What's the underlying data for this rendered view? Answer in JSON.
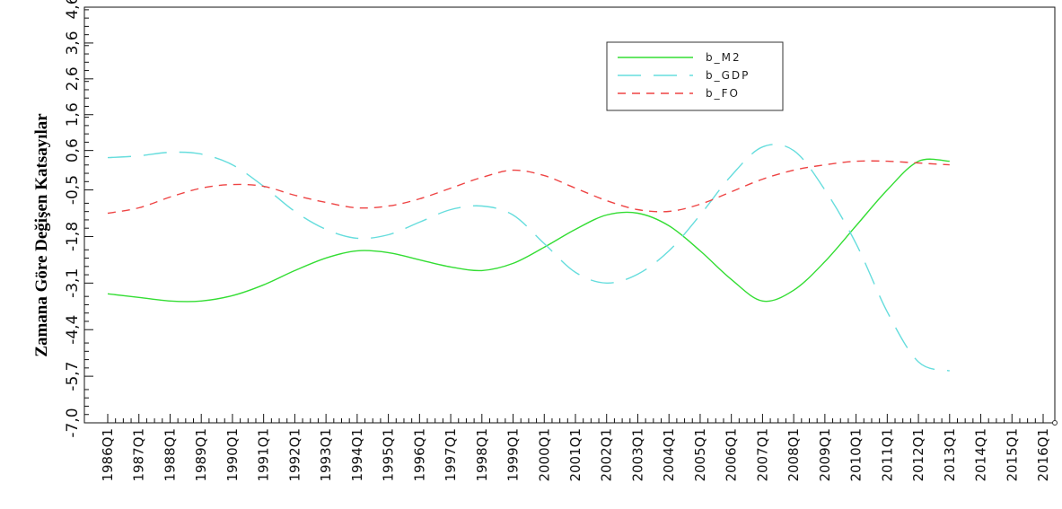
{
  "chart_data": {
    "type": "line",
    "title": "",
    "xlabel": "",
    "ylabel": "Zamana Göre Değişen Katsayılar",
    "ylim": [
      -7.0,
      4.6
    ],
    "yticks": [
      "-7,0",
      "-5,7",
      "-4,4",
      "-3,1",
      "-1,8",
      "-0,5",
      "0,6",
      "1,6",
      "2,6",
      "3,6",
      "4,6"
    ],
    "ytick_values": [
      -7.0,
      -5.7,
      -4.4,
      -3.1,
      -1.8,
      -0.5,
      0.6,
      1.6,
      2.6,
      3.6,
      4.6
    ],
    "categories": [
      "1986Q1",
      "1987Q1",
      "1988Q1",
      "1989Q1",
      "1990Q1",
      "1991Q1",
      "1992Q1",
      "1993Q1",
      "1994Q1",
      "1995Q1",
      "1996Q1",
      "1997Q1",
      "1998Q1",
      "1999Q1",
      "2000Q1",
      "2001Q1",
      "2002Q1",
      "2003Q1",
      "2004Q1",
      "2005Q1",
      "2006Q1",
      "2007Q1",
      "2008Q1",
      "2009Q1",
      "2010Q1",
      "2011Q1",
      "2012Q1",
      "2013Q1",
      "2014Q1",
      "2015Q1",
      "2016Q1"
    ],
    "grid": false,
    "legend_position": "top-right",
    "series": [
      {
        "name": "b_M2",
        "color": "#33dd33",
        "dash": "solid",
        "x": [
          1986.0,
          1987.0,
          1988.0,
          1989.0,
          1990.0,
          1991.0,
          1992.0,
          1993.0,
          1994.0,
          1995.0,
          1996.0,
          1997.0,
          1998.0,
          1999.0,
          2000.0,
          2001.0,
          2002.0,
          2003.0,
          2004.0,
          2005.0,
          2006.0,
          2007.0,
          2008.0,
          2009.0,
          2010.0,
          2011.0,
          2012.0,
          2013.0
        ],
        "values": [
          -3.4,
          -3.5,
          -3.6,
          -3.6,
          -3.45,
          -3.15,
          -2.75,
          -2.4,
          -2.2,
          -2.25,
          -2.45,
          -2.65,
          -2.75,
          -2.55,
          -2.1,
          -1.6,
          -1.2,
          -1.15,
          -1.5,
          -2.2,
          -3.0,
          -3.6,
          -3.3,
          -2.5,
          -1.5,
          -0.5,
          0.3,
          0.3
        ]
      },
      {
        "name": "b_GDP",
        "color": "#66dddd",
        "dash": "long-dash",
        "x": [
          1986.0,
          1987.0,
          1988.0,
          1989.0,
          1990.0,
          1991.0,
          1992.0,
          1993.0,
          1994.0,
          1995.0,
          1996.0,
          1997.0,
          1998.0,
          1999.0,
          2000.0,
          2001.0,
          2002.0,
          2003.0,
          2004.0,
          2005.0,
          2006.0,
          2007.0,
          2008.0,
          2009.0,
          2010.0,
          2011.0,
          2012.0,
          2013.0
        ],
        "values": [
          0.4,
          0.45,
          0.55,
          0.5,
          0.2,
          -0.4,
          -1.1,
          -1.6,
          -1.85,
          -1.75,
          -1.4,
          -1.05,
          -0.95,
          -1.2,
          -2.0,
          -2.8,
          -3.1,
          -2.85,
          -2.2,
          -1.2,
          -0.1,
          0.7,
          0.6,
          -0.5,
          -2.0,
          -3.9,
          -5.3,
          -5.55
        ]
      },
      {
        "name": "b_FO",
        "color": "#ee4444",
        "dash": "dash",
        "x": [
          1986.0,
          1987.0,
          1988.0,
          1989.0,
          1990.0,
          1991.0,
          1992.0,
          1993.0,
          1994.0,
          1995.0,
          1996.0,
          1997.0,
          1998.0,
          1999.0,
          2000.0,
          2001.0,
          2002.0,
          2003.0,
          2004.0,
          2005.0,
          2006.0,
          2007.0,
          2008.0,
          2009.0,
          2010.0,
          2011.0,
          2012.0,
          2013.0
        ],
        "values": [
          -1.15,
          -1.0,
          -0.7,
          -0.45,
          -0.35,
          -0.4,
          -0.65,
          -0.85,
          -1.0,
          -0.95,
          -0.75,
          -0.45,
          -0.15,
          0.05,
          -0.1,
          -0.45,
          -0.8,
          -1.05,
          -1.1,
          -0.9,
          -0.55,
          -0.2,
          0.05,
          0.2,
          0.3,
          0.3,
          0.25,
          0.2
        ]
      }
    ]
  }
}
